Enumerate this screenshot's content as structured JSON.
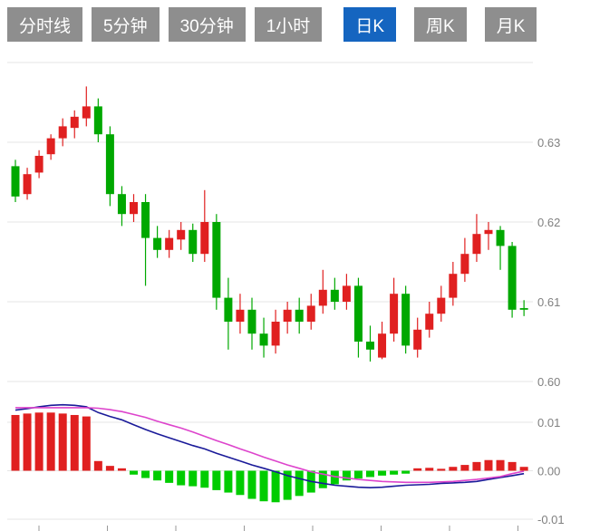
{
  "toolbar": {
    "tabs": [
      {
        "label": "分时线",
        "active": false
      },
      {
        "label": "5分钟",
        "active": false
      },
      {
        "label": "30分钟",
        "active": false
      },
      {
        "label": "1小时",
        "active": false
      },
      {
        "label": "日K",
        "active": true
      },
      {
        "label": "周K",
        "active": false
      },
      {
        "label": "月K",
        "active": false
      }
    ]
  },
  "colors": {
    "tab_bg": "#8e8e8e",
    "tab_active_bg": "#1565c0",
    "tab_text": "#ffffff",
    "grid": "#e6e6e6",
    "axis_text": "#808080",
    "up": "#e02020",
    "down": "#00a800",
    "macd_up": "#e02020",
    "macd_down": "#00cc00",
    "dif_line": "#1a1a99",
    "dea_line": "#dd44cc",
    "axis_tick": "#999999"
  },
  "chart_data": {
    "type": "candlestick_with_macd",
    "title": "",
    "interval_selected": "日K",
    "price_axis": {
      "range": [
        0.598,
        0.641
      ],
      "gridlines": [
        {
          "value": 0.64,
          "label": ""
        },
        {
          "value": 0.63,
          "label": "0.63"
        },
        {
          "value": 0.62,
          "label": "0.62"
        },
        {
          "value": 0.61,
          "label": "0.61"
        },
        {
          "value": 0.6,
          "label": "0.60"
        }
      ]
    },
    "macd_axis": {
      "range": [
        -0.012,
        0.016
      ],
      "gridlines": [
        {
          "value": 0.01,
          "label": "0.01"
        },
        {
          "value": 0.0,
          "label": "0.00"
        },
        {
          "value": -0.01,
          "label": "-0.01"
        }
      ]
    },
    "candles_format": "[open, high, low, close] — red = up, green = down",
    "candles": [
      [
        0.627,
        0.6278,
        0.6225,
        0.6232
      ],
      [
        0.6235,
        0.6268,
        0.6228,
        0.626
      ],
      [
        0.6262,
        0.629,
        0.6255,
        0.6283
      ],
      [
        0.6285,
        0.631,
        0.6278,
        0.6305
      ],
      [
        0.6305,
        0.633,
        0.6295,
        0.632
      ],
      [
        0.6318,
        0.634,
        0.6305,
        0.6332
      ],
      [
        0.633,
        0.637,
        0.632,
        0.6345
      ],
      [
        0.6345,
        0.6355,
        0.63,
        0.631
      ],
      [
        0.631,
        0.632,
        0.622,
        0.6235
      ],
      [
        0.6235,
        0.6245,
        0.6195,
        0.621
      ],
      [
        0.621,
        0.6235,
        0.62,
        0.6225
      ],
      [
        0.6225,
        0.6235,
        0.612,
        0.618
      ],
      [
        0.618,
        0.6195,
        0.6155,
        0.6165
      ],
      [
        0.6165,
        0.619,
        0.6155,
        0.618
      ],
      [
        0.6178,
        0.62,
        0.6165,
        0.619
      ],
      [
        0.619,
        0.6198,
        0.615,
        0.616
      ],
      [
        0.616,
        0.624,
        0.615,
        0.62
      ],
      [
        0.62,
        0.621,
        0.609,
        0.6105
      ],
      [
        0.6105,
        0.613,
        0.604,
        0.6075
      ],
      [
        0.6075,
        0.611,
        0.606,
        0.609
      ],
      [
        0.609,
        0.6105,
        0.604,
        0.606
      ],
      [
        0.606,
        0.608,
        0.603,
        0.6045
      ],
      [
        0.6045,
        0.609,
        0.6035,
        0.6075
      ],
      [
        0.6075,
        0.61,
        0.606,
        0.609
      ],
      [
        0.609,
        0.6105,
        0.606,
        0.6075
      ],
      [
        0.6075,
        0.611,
        0.6065,
        0.6095
      ],
      [
        0.6095,
        0.614,
        0.6085,
        0.6115
      ],
      [
        0.6115,
        0.613,
        0.609,
        0.61
      ],
      [
        0.61,
        0.6135,
        0.609,
        0.612
      ],
      [
        0.612,
        0.613,
        0.603,
        0.605
      ],
      [
        0.605,
        0.607,
        0.6025,
        0.604
      ],
      [
        0.603,
        0.6075,
        0.6028,
        0.606
      ],
      [
        0.606,
        0.613,
        0.605,
        0.611
      ],
      [
        0.611,
        0.612,
        0.6035,
        0.6045
      ],
      [
        0.604,
        0.608,
        0.603,
        0.6065
      ],
      [
        0.6065,
        0.61,
        0.6055,
        0.6085
      ],
      [
        0.6085,
        0.612,
        0.6075,
        0.6105
      ],
      [
        0.6105,
        0.615,
        0.6095,
        0.6135
      ],
      [
        0.6135,
        0.618,
        0.6125,
        0.616
      ],
      [
        0.616,
        0.621,
        0.615,
        0.6185
      ],
      [
        0.6185,
        0.62,
        0.6165,
        0.619
      ],
      [
        0.619,
        0.6195,
        0.614,
        0.617
      ],
      [
        0.617,
        0.6175,
        0.608,
        0.609
      ],
      [
        0.6092,
        0.6102,
        0.6082,
        0.609
      ]
    ],
    "macd": {
      "hist": [
        0.0115,
        0.0118,
        0.012,
        0.012,
        0.0118,
        0.0115,
        0.0112,
        0.002,
        0.001,
        0.0005,
        -0.0008,
        -0.0015,
        -0.002,
        -0.0025,
        -0.003,
        -0.0032,
        -0.0035,
        -0.004,
        -0.0045,
        -0.005,
        -0.0058,
        -0.0063,
        -0.0065,
        -0.006,
        -0.0052,
        -0.0045,
        -0.0036,
        -0.0028,
        -0.002,
        -0.0016,
        -0.0013,
        -0.001,
        -0.0008,
        -0.0006,
        0.0005,
        0.0006,
        0.0004,
        0.0008,
        0.0012,
        0.0018,
        0.0022,
        0.0022,
        0.0018,
        0.0008
      ],
      "dif": [
        0.0125,
        0.0128,
        0.0132,
        0.0135,
        0.0136,
        0.0135,
        0.0132,
        0.012,
        0.0112,
        0.0105,
        0.0095,
        0.0085,
        0.0076,
        0.0068,
        0.006,
        0.0052,
        0.0045,
        0.0036,
        0.0028,
        0.002,
        0.0012,
        0.0005,
        -0.0002,
        -0.001,
        -0.0016,
        -0.0022,
        -0.0026,
        -0.003,
        -0.0032,
        -0.0034,
        -0.0035,
        -0.0034,
        -0.0032,
        -0.003,
        -0.0029,
        -0.0028,
        -0.0026,
        -0.0025,
        -0.0024,
        -0.0022,
        -0.0018,
        -0.0014,
        -0.001,
        -0.0006
      ],
      "dea": [
        0.013,
        0.013,
        0.013,
        0.013,
        0.013,
        0.013,
        0.013,
        0.0129,
        0.0126,
        0.0122,
        0.0116,
        0.011,
        0.0102,
        0.0095,
        0.0088,
        0.008,
        0.0071,
        0.0062,
        0.0054,
        0.0045,
        0.0037,
        0.0028,
        0.002,
        0.0012,
        0.0005,
        -0.0002,
        -0.0007,
        -0.0012,
        -0.0015,
        -0.0018,
        -0.002,
        -0.0022,
        -0.0023,
        -0.0024,
        -0.0024,
        -0.0024,
        -0.0023,
        -0.0022,
        -0.002,
        -0.0018,
        -0.0015,
        -0.0012,
        -0.0006,
        -0.0001
      ]
    },
    "legend": [],
    "grid": true
  }
}
